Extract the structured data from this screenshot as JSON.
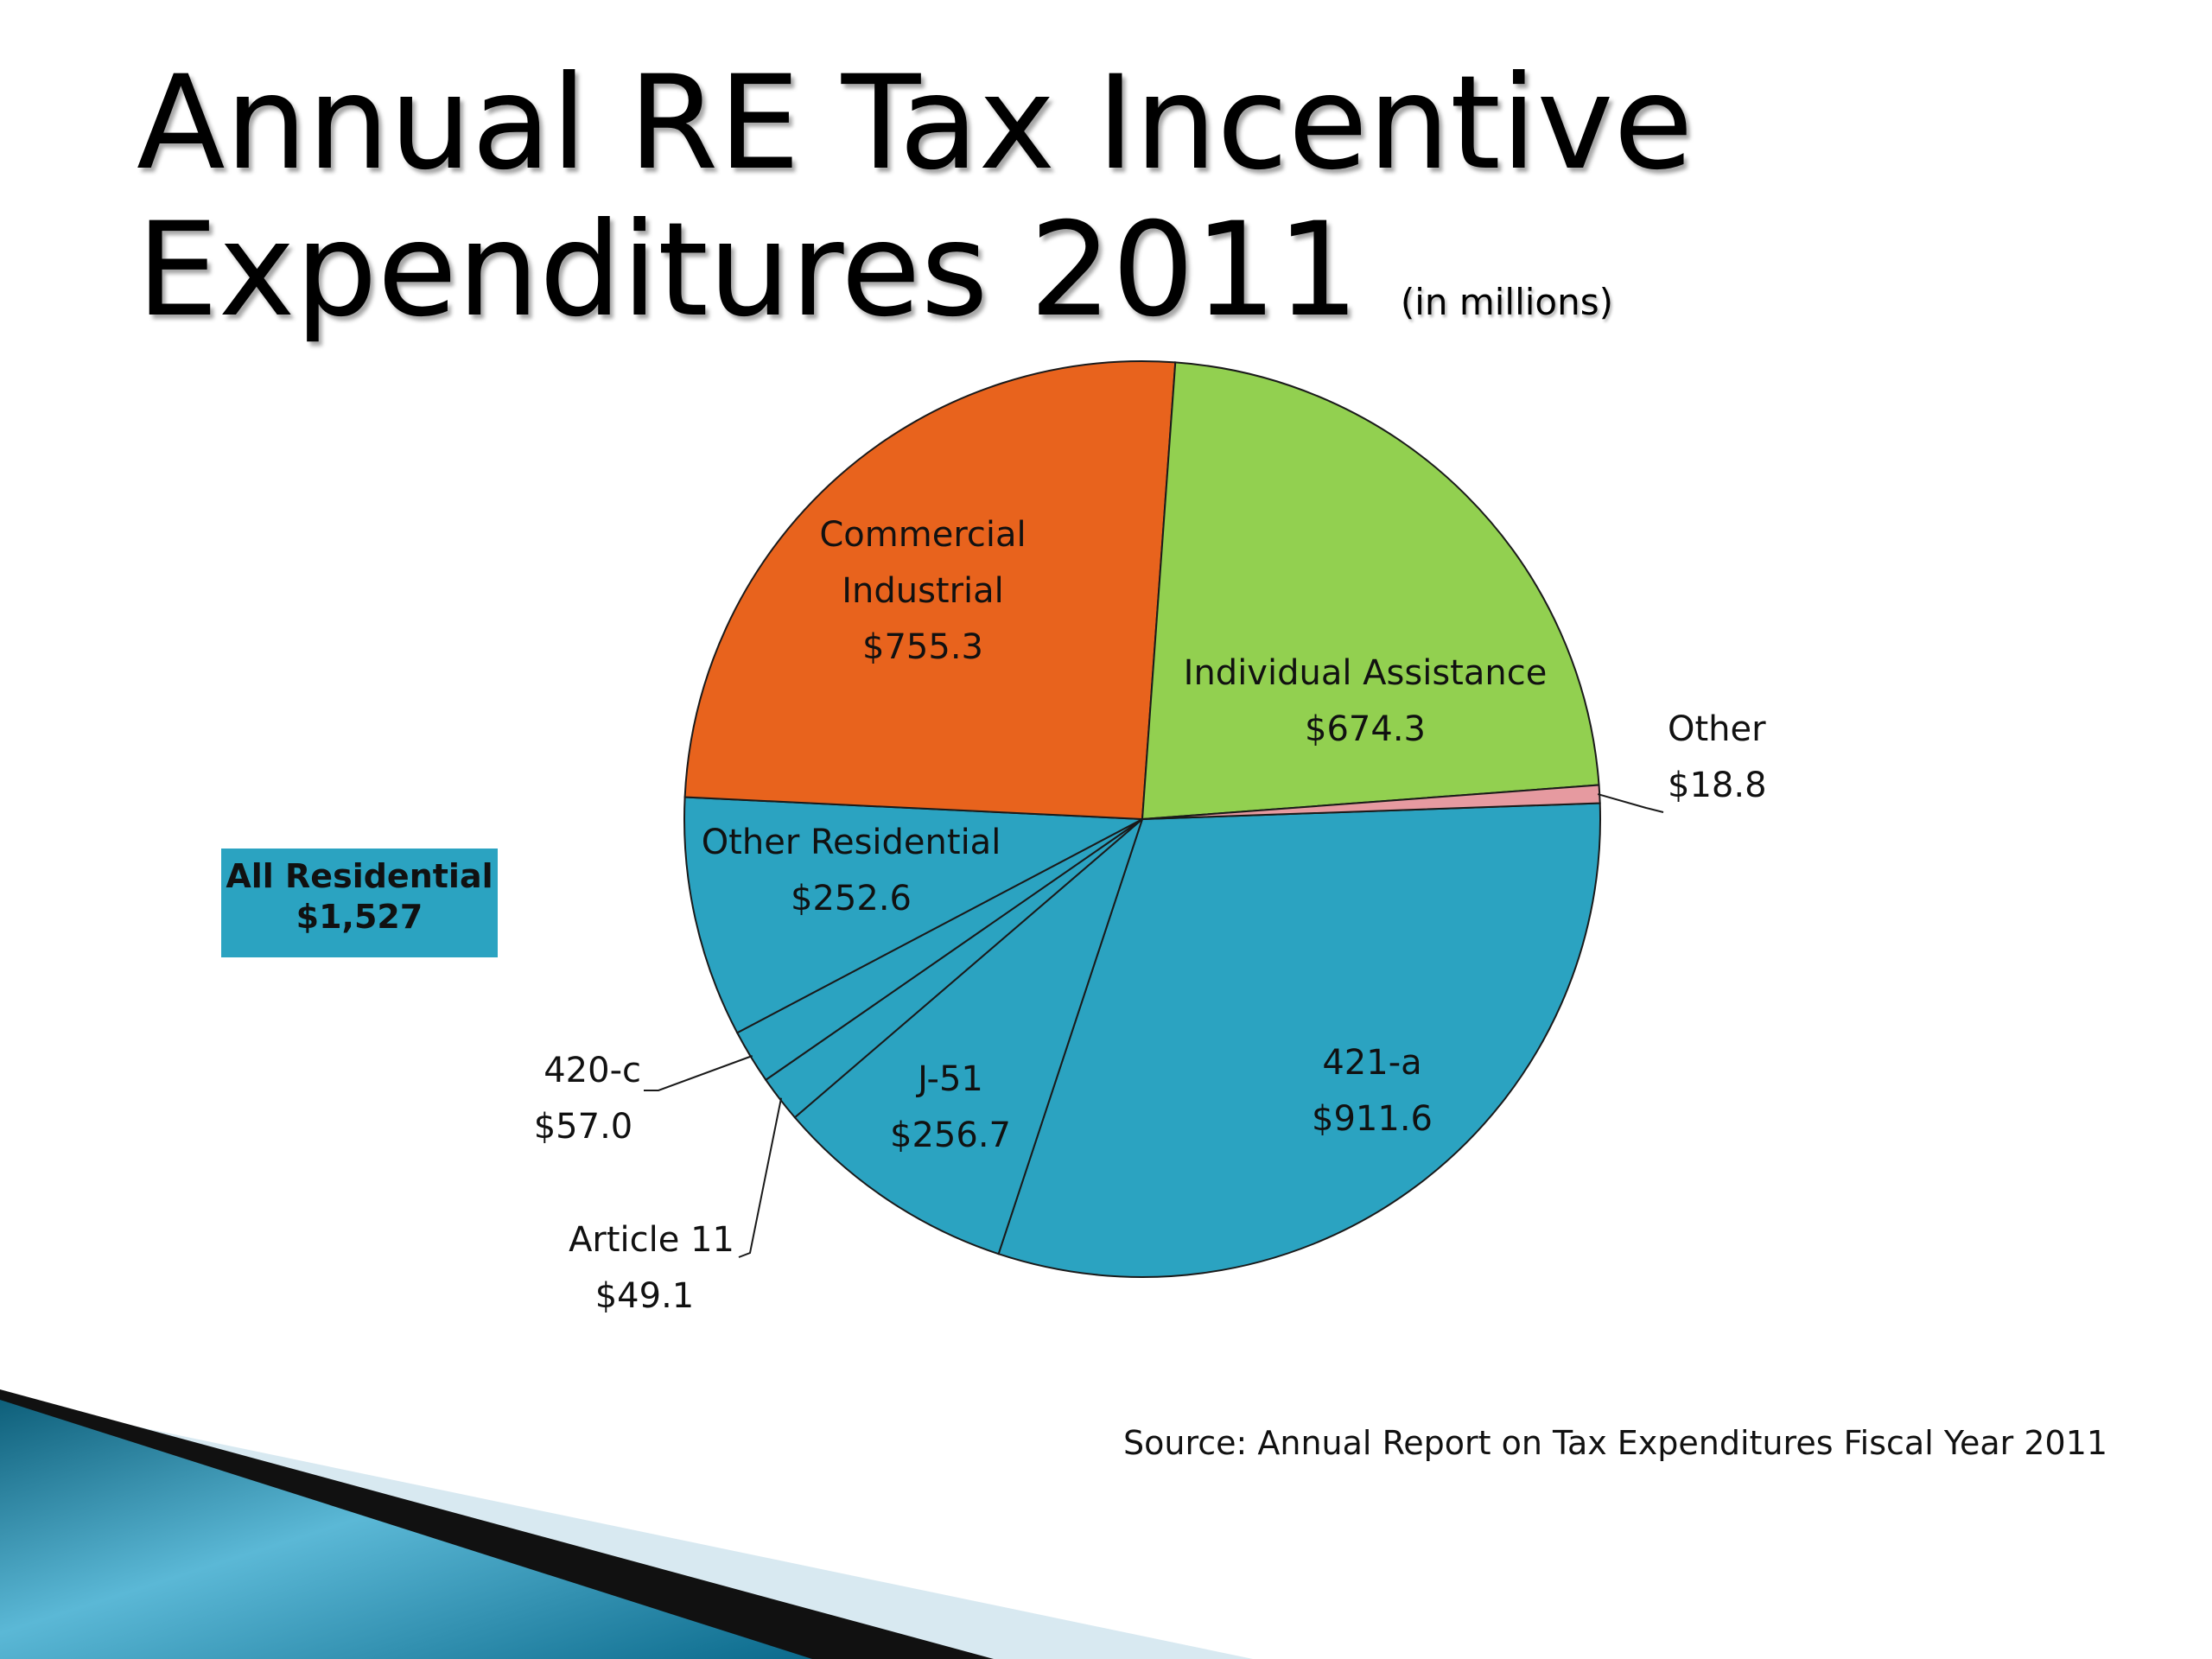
{
  "title": {
    "main": "Annual RE Tax Incentive Expenditures 2011",
    "line1": "Annual RE Tax Incentive",
    "line2": "Expenditures 2011",
    "unit_note": "(in millions)"
  },
  "source": "Source: Annual Report on Tax Expenditures Fiscal Year 2011",
  "colors": {
    "residential": "#2ba3c1",
    "commercial_industrial": "#e8631d",
    "individual_assistance": "#92d050",
    "other": "#e69aa0",
    "outline": "#1a1a1a"
  },
  "chart_data": {
    "type": "pie",
    "units": "millions",
    "slices": [
      {
        "label": "421-a",
        "value": 911.6,
        "display": "$911.6",
        "group": "residential",
        "color": "#2ba3c1"
      },
      {
        "label": "J-51",
        "value": 256.7,
        "display": "$256.7",
        "group": "residential",
        "color": "#2ba3c1"
      },
      {
        "label": "Article 11",
        "value": 49.1,
        "display": "$49.1",
        "group": "residential",
        "color": "#2ba3c1"
      },
      {
        "label": "420-c",
        "value": 57.0,
        "display": "$57.0",
        "group": "residential",
        "color": "#2ba3c1"
      },
      {
        "label": "Other Residential",
        "value": 252.6,
        "display": "$252.6",
        "group": "residential",
        "color": "#2ba3c1"
      },
      {
        "label": "Commercial Industrial",
        "label_lines": [
          "Commercial",
          "Industrial"
        ],
        "value": 755.3,
        "display": "$755.3",
        "group": "commercial",
        "color": "#e8631d"
      },
      {
        "label": "Individual Assistance",
        "value": 674.3,
        "display": "$674.3",
        "group": "individual",
        "color": "#92d050"
      },
      {
        "label": "Other",
        "value": 18.8,
        "display": "$18.8",
        "group": "other",
        "color": "#e69aa0"
      }
    ],
    "group_callout": {
      "label": "All Residential",
      "value": 1527,
      "display": "$1,527"
    }
  }
}
